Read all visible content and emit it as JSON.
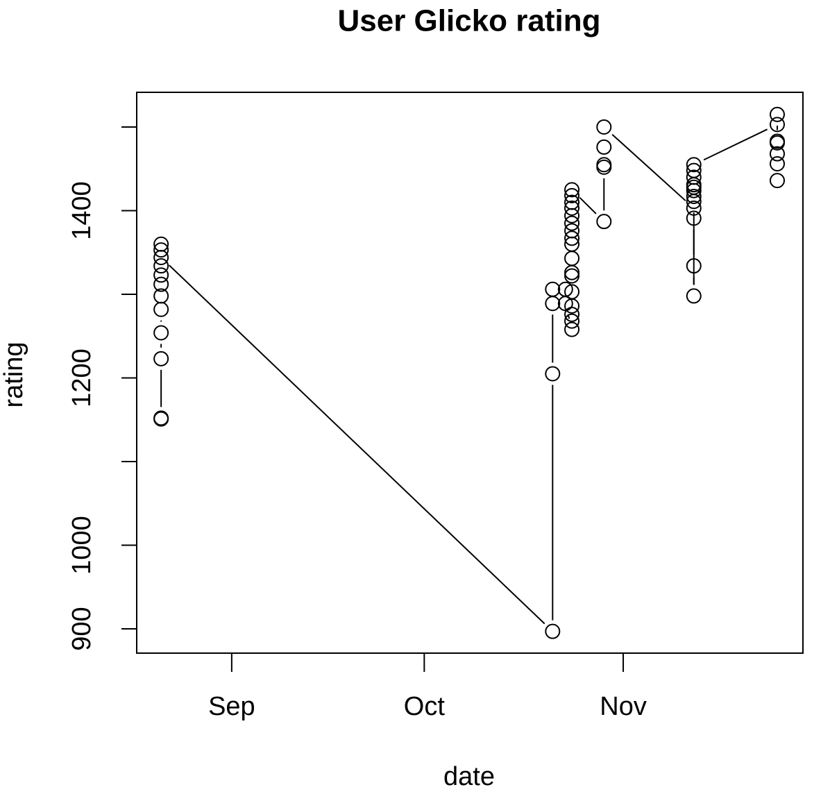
{
  "chart_data": {
    "type": "scatter",
    "connected": true,
    "title": "User Glicko rating",
    "xlabel": "date",
    "ylabel": "rating",
    "x": [
      -11,
      -11,
      -11,
      -11,
      -11,
      -11,
      -11,
      -11,
      -11,
      -11,
      -11,
      -11,
      50,
      50,
      50,
      50,
      52,
      52,
      53,
      53,
      53,
      53,
      53,
      53,
      53,
      53,
      53,
      53,
      53,
      53,
      53,
      53,
      53,
      53,
      53,
      58,
      58,
      58,
      58,
      58,
      72,
      72,
      72,
      72,
      72,
      72,
      72,
      72,
      72,
      72,
      72,
      72,
      85,
      85,
      85,
      85,
      85,
      85,
      85
    ],
    "y": [
      1151,
      1152,
      1223,
      1254,
      1282,
      1298,
      1312,
      1323,
      1334,
      1353,
      1360,
      1344,
      897,
      1205,
      1289,
      1306,
      1306,
      1289,
      1258,
      1268,
      1276,
      1286,
      1303,
      1322,
      1326,
      1343,
      1360,
      1367,
      1376,
      1385,
      1394,
      1403,
      1410,
      1418,
      1425,
      1387,
      1452,
      1455,
      1476,
      1500,
      1403,
      1391,
      1334,
      1298,
      1411,
      1417,
      1424,
      1428,
      1431,
      1440,
      1448,
      1455,
      1503,
      1515,
      1483,
      1481,
      1468,
      1456,
      1436
    ],
    "color": "#000000",
    "xlim": [
      -14.8,
      89.0
    ],
    "xticks": [
      {
        "value": 0,
        "label": "Sep"
      },
      {
        "value": 30,
        "label": "Oct"
      },
      {
        "value": 61,
        "label": "Nov"
      }
    ],
    "ylim": [
      871,
      1541.5
    ],
    "yticks": [
      900,
      1000,
      1200,
      1400
    ],
    "yminorticks": [
      1100,
      1300,
      1500
    ]
  }
}
